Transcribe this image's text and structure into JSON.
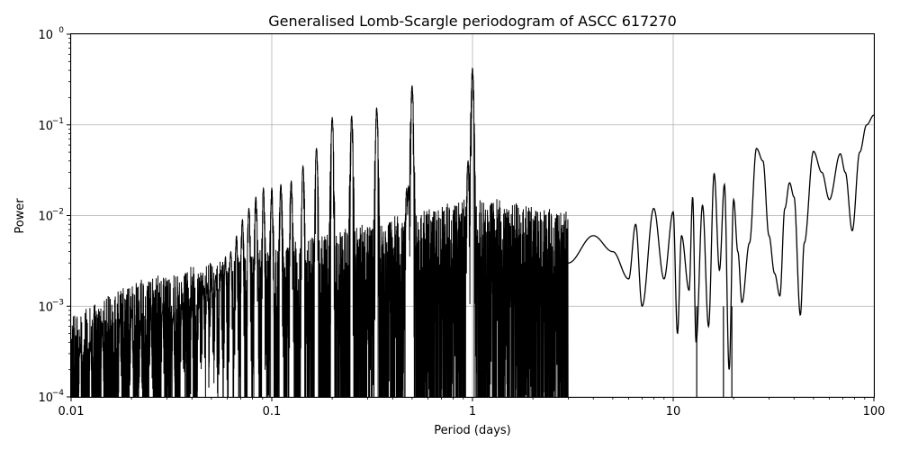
{
  "chart_data": {
    "type": "line",
    "title": "Generalised Lomb-Scargle periodogram of ASCC 617270",
    "xlabel": "Period (days)",
    "ylabel": "Power",
    "xscale": "log",
    "yscale": "log",
    "xlim": [
      0.01,
      100
    ],
    "ylim": [
      0.0001,
      1
    ],
    "grid": true,
    "x_ticks": [
      {
        "value": 0.01,
        "label": "0.01"
      },
      {
        "value": 0.1,
        "label": "0.1"
      },
      {
        "value": 1,
        "label": "1"
      },
      {
        "value": 10,
        "label": "10"
      },
      {
        "value": 100,
        "label": "100"
      }
    ],
    "y_ticks": [
      {
        "value": 0.0001,
        "base": "10",
        "exp": "−4"
      },
      {
        "value": 0.001,
        "base": "10",
        "exp": "−3"
      },
      {
        "value": 0.01,
        "base": "10",
        "exp": "−2"
      },
      {
        "value": 0.1,
        "base": "10",
        "exp": "−1"
      },
      {
        "value": 1,
        "base": "10",
        "exp": "0"
      }
    ],
    "line_color": "#000000",
    "peaks": [
      {
        "period": 1.0,
        "power": 0.42
      },
      {
        "period": 0.5,
        "power": 0.27
      },
      {
        "period": 0.333,
        "power": 0.155
      },
      {
        "period": 0.25,
        "power": 0.125
      },
      {
        "period": 0.2,
        "power": 0.12
      },
      {
        "period": 0.167,
        "power": 0.055
      },
      {
        "period": 0.143,
        "power": 0.035
      },
      {
        "period": 0.125,
        "power": 0.024
      },
      {
        "period": 0.111,
        "power": 0.022
      },
      {
        "period": 0.1,
        "power": 0.02
      },
      {
        "period": 0.0909,
        "power": 0.02
      },
      {
        "period": 0.0833,
        "power": 0.016
      },
      {
        "period": 0.0769,
        "power": 0.012
      },
      {
        "period": 0.0714,
        "power": 0.009
      },
      {
        "period": 0.0667,
        "power": 0.006
      },
      {
        "period": 0.0625,
        "power": 0.004
      },
      {
        "period": 0.0588,
        "power": 0.0035
      },
      {
        "period": 0.0556,
        "power": 0.0025
      },
      {
        "period": 0.0526,
        "power": 0.0022
      },
      {
        "period": 0.05,
        "power": 0.002
      },
      {
        "period": 0.0476,
        "power": 0.0018
      },
      {
        "period": 0.0455,
        "power": 0.0015
      },
      {
        "period": 0.0435,
        "power": 0.0012
      },
      {
        "period": 0.04,
        "power": 0.001
      },
      {
        "period": 0.0357,
        "power": 0.001
      },
      {
        "period": 0.0323,
        "power": 0.0008
      },
      {
        "period": 0.0286,
        "power": 0.0009
      },
      {
        "period": 0.025,
        "power": 0.0008
      },
      {
        "period": 0.0222,
        "power": 0.0006
      },
      {
        "period": 0.02,
        "power": 0.0009
      },
      {
        "period": 0.0175,
        "power": 0.0007
      },
      {
        "period": 0.0143,
        "power": 0.00055
      },
      {
        "period": 0.0125,
        "power": 0.0004
      },
      {
        "period": 0.0111,
        "power": 0.00038
      },
      {
        "period": 0.95,
        "power": 0.04
      },
      {
        "period": 0.47,
        "power": 0.02
      },
      {
        "period": 0.48,
        "power": 0.021
      }
    ],
    "tail_series": {
      "name": "",
      "x": [
        3.0,
        4.0,
        5.0,
        6.0,
        6.5,
        7.0,
        8.0,
        9.0,
        10.0,
        10.5,
        11.0,
        12.0,
        12.5,
        13.0,
        14.0,
        15.0,
        16.0,
        17.0,
        18.0,
        19.0,
        20.0,
        21.0,
        22.0,
        24.0,
        26.0,
        28.0,
        30.0,
        32.0,
        34.0,
        36.0,
        38.0,
        40.0,
        43.0,
        45.0,
        50.0,
        55.0,
        60.0,
        68.0,
        72.0,
        78.0,
        85.0,
        92.0,
        100.0
      ],
      "y": [
        0.003,
        0.006,
        0.004,
        0.002,
        0.008,
        0.001,
        0.012,
        0.002,
        0.011,
        0.0005,
        0.006,
        0.0015,
        0.016,
        0.0004,
        0.013,
        0.0006,
        0.029,
        0.0025,
        0.022,
        0.0002,
        0.015,
        0.004,
        0.0011,
        0.005,
        0.055,
        0.04,
        0.006,
        0.0023,
        0.0013,
        0.012,
        0.023,
        0.016,
        0.0008,
        0.005,
        0.051,
        0.03,
        0.015,
        0.048,
        0.03,
        0.0068,
        0.05,
        0.1,
        0.128
      ]
    }
  }
}
